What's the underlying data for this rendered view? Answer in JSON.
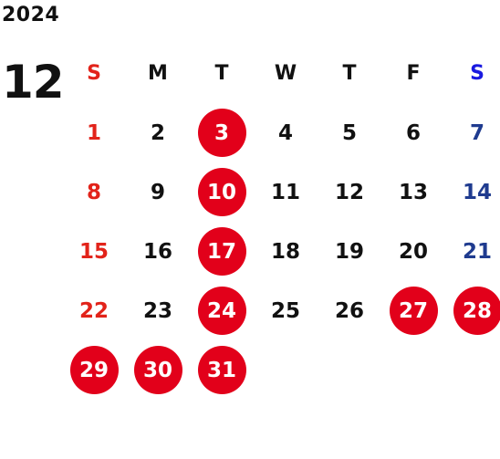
{
  "calendar": {
    "year": "2024",
    "month": "12",
    "colors": {
      "text": "#111111",
      "sunday": "#e2231a",
      "saturday": "#1f3b8f",
      "saturday_header": "#1a1ae0",
      "holiday_circle": "#e2001a",
      "holiday_text": "#ffffff"
    },
    "weekdays": [
      "S",
      "M",
      "T",
      "W",
      "T",
      "F",
      "S"
    ],
    "first_weekday_index": 0,
    "days": [
      {
        "label": "1",
        "holiday": false
      },
      {
        "label": "2",
        "holiday": false
      },
      {
        "label": "3",
        "holiday": true
      },
      {
        "label": "4",
        "holiday": false
      },
      {
        "label": "5",
        "holiday": false
      },
      {
        "label": "6",
        "holiday": false
      },
      {
        "label": "7",
        "holiday": false
      },
      {
        "label": "8",
        "holiday": false
      },
      {
        "label": "9",
        "holiday": false
      },
      {
        "label": "10",
        "holiday": true
      },
      {
        "label": "11",
        "holiday": false
      },
      {
        "label": "12",
        "holiday": false
      },
      {
        "label": "13",
        "holiday": false
      },
      {
        "label": "14",
        "holiday": false
      },
      {
        "label": "15",
        "holiday": false
      },
      {
        "label": "16",
        "holiday": false
      },
      {
        "label": "17",
        "holiday": true
      },
      {
        "label": "18",
        "holiday": false
      },
      {
        "label": "19",
        "holiday": false
      },
      {
        "label": "20",
        "holiday": false
      },
      {
        "label": "21",
        "holiday": false
      },
      {
        "label": "22",
        "holiday": false
      },
      {
        "label": "23",
        "holiday": false
      },
      {
        "label": "24",
        "holiday": true
      },
      {
        "label": "25",
        "holiday": false
      },
      {
        "label": "26",
        "holiday": false
      },
      {
        "label": "27",
        "holiday": true
      },
      {
        "label": "28",
        "holiday": true
      },
      {
        "label": "29",
        "holiday": true
      },
      {
        "label": "30",
        "holiday": true
      },
      {
        "label": "31",
        "holiday": true
      }
    ]
  }
}
